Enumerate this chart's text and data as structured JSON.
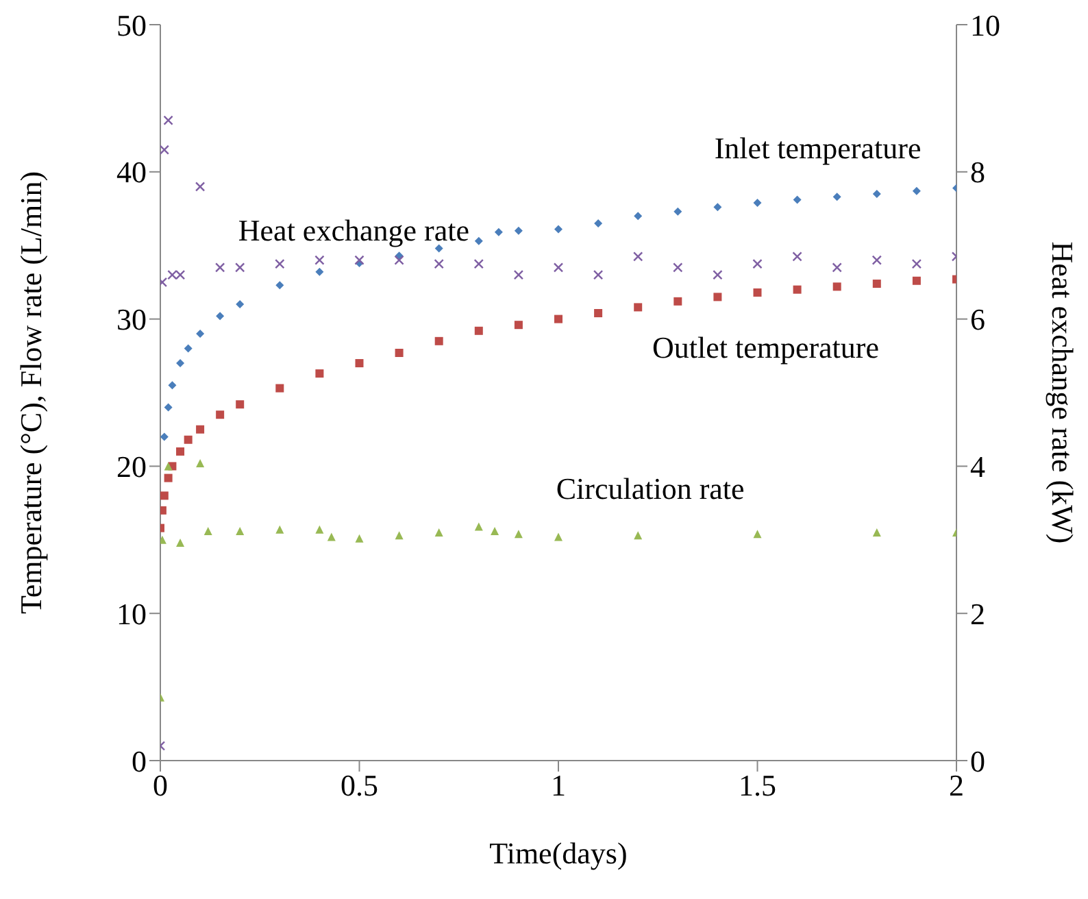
{
  "chart_data": {
    "type": "scatter",
    "xlabel": "Time(days)",
    "ylabel": "Temperature (°C), Flow rate (L/min)",
    "y2label": "Heat exchange rate (kW)",
    "xlim": [
      0,
      2
    ],
    "xticks": [
      0,
      0.5,
      1,
      1.5,
      2
    ],
    "ylim": [
      0,
      50
    ],
    "yticks": [
      0,
      10,
      20,
      30,
      40,
      50
    ],
    "y2lim": [
      0,
      10
    ],
    "y2ticks": [
      0,
      2,
      4,
      6,
      8,
      10
    ],
    "grid": false,
    "legend": false,
    "series": [
      {
        "name": "Inlet temperature",
        "color": "#4a7ebb",
        "marker": "diamond",
        "x": [
          0.01,
          0.02,
          0.03,
          0.05,
          0.07,
          0.1,
          0.15,
          0.2,
          0.3,
          0.4,
          0.5,
          0.6,
          0.7,
          0.8,
          0.85,
          0.9,
          1.0,
          1.1,
          1.2,
          1.3,
          1.4,
          1.5,
          1.6,
          1.7,
          1.8,
          1.9,
          2.0
        ],
        "values": [
          22,
          24,
          25.5,
          27,
          28,
          29,
          30.2,
          31,
          32.3,
          33.2,
          33.8,
          34.3,
          34.8,
          35.3,
          35.9,
          36,
          36.1,
          36.5,
          37,
          37.3,
          37.6,
          37.9,
          38.1,
          38.3,
          38.5,
          38.7,
          38.9
        ]
      },
      {
        "name": "Outlet temperature",
        "color": "#be4b48",
        "marker": "square",
        "x": [
          0,
          0.005,
          0.01,
          0.02,
          0.03,
          0.05,
          0.07,
          0.1,
          0.15,
          0.2,
          0.3,
          0.4,
          0.5,
          0.6,
          0.7,
          0.8,
          0.9,
          1.0,
          1.1,
          1.2,
          1.3,
          1.4,
          1.5,
          1.6,
          1.7,
          1.8,
          1.9,
          2.0
        ],
        "values": [
          15.8,
          17,
          18,
          19.2,
          20,
          21,
          21.8,
          22.5,
          23.5,
          24.2,
          25.3,
          26.3,
          27,
          27.7,
          28.5,
          29.2,
          29.6,
          30,
          30.4,
          30.8,
          31.2,
          31.5,
          31.8,
          32,
          32.2,
          32.4,
          32.6,
          32.7
        ]
      },
      {
        "name": "Circulation rate",
        "color": "#98b954",
        "marker": "triangle",
        "x": [
          0,
          0.005,
          0.02,
          0.05,
          0.1,
          0.12,
          0.2,
          0.3,
          0.4,
          0.43,
          0.5,
          0.6,
          0.7,
          0.8,
          0.84,
          0.9,
          1.0,
          1.2,
          1.5,
          1.8,
          2.0
        ],
        "values": [
          4.3,
          15,
          20,
          14.8,
          20.2,
          15.6,
          15.6,
          15.7,
          15.7,
          15.2,
          15.1,
          15.3,
          15.5,
          15.9,
          15.6,
          15.4,
          15.2,
          15.3,
          15.4,
          15.5,
          15.5
        ]
      },
      {
        "name": "Heat exchange rate",
        "color": "#7f5fa3",
        "marker": "cross",
        "axis": "y2",
        "x": [
          0,
          0.005,
          0.01,
          0.02,
          0.03,
          0.05,
          0.1,
          0.15,
          0.2,
          0.3,
          0.4,
          0.5,
          0.6,
          0.7,
          0.8,
          0.9,
          1.0,
          1.1,
          1.2,
          1.3,
          1.4,
          1.5,
          1.6,
          1.7,
          1.8,
          1.9,
          2.0
        ],
        "values": [
          0.2,
          6.5,
          8.3,
          8.7,
          6.6,
          6.6,
          7.8,
          6.7,
          6.7,
          6.75,
          6.8,
          6.8,
          6.8,
          6.75,
          6.75,
          6.6,
          6.7,
          6.6,
          6.85,
          6.7,
          6.6,
          6.75,
          6.85,
          6.7,
          6.8,
          6.75,
          6.85
        ]
      }
    ]
  }
}
